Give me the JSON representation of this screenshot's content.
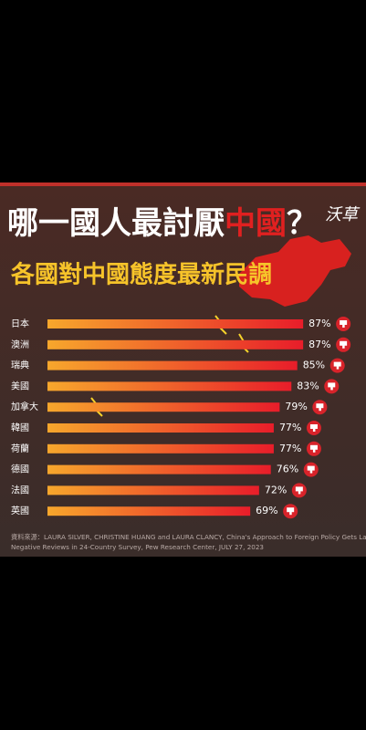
{
  "chart_data": {
    "type": "bar",
    "title": [
      "哪一國人最討厭",
      "中國",
      "？"
    ],
    "subtitle": "各國對中國態度最新民調",
    "logo": "沃草",
    "categories": [
      "日本",
      "澳洲",
      "瑞典",
      "美國",
      "加拿大",
      "韓國",
      "荷蘭",
      "德國",
      "法國",
      "英國"
    ],
    "values": [
      87,
      87,
      85,
      83,
      79,
      77,
      77,
      76,
      72,
      69
    ],
    "value_labels": [
      "87%",
      "87%",
      "85%",
      "83%",
      "79%",
      "77%",
      "77%",
      "76%",
      "72%",
      "69%"
    ],
    "color": [
      "#f7a72c",
      "#e81d2a"
    ],
    "source": [
      "資料來源：LAURA SILVER, CHRISTINE HUANG and LAURA CLANCY, China's Approach to Foreign Policy Gets Largely",
      "Negative Reviews in 24-Country Survey,  Pew Research Center, JULY 27, 2023"
    ]
  }
}
